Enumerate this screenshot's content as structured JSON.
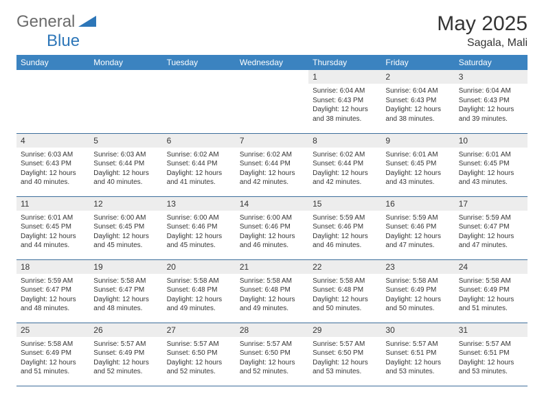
{
  "logo": {
    "general": "General",
    "blue": "Blue"
  },
  "title": "May 2025",
  "location": "Sagala, Mali",
  "colors": {
    "header_bg": "#3b83c0",
    "header_text": "#ffffff",
    "daynum_bg": "#ededed",
    "border": "#3b6c9a",
    "logo_gray": "#6b6b6b",
    "logo_blue": "#2d76b8",
    "text": "#343434"
  },
  "weekdays": [
    "Sunday",
    "Monday",
    "Tuesday",
    "Wednesday",
    "Thursday",
    "Friday",
    "Saturday"
  ],
  "weeks": [
    [
      null,
      null,
      null,
      null,
      {
        "d": "1",
        "sr": "6:04 AM",
        "ss": "6:43 PM",
        "dl": "12 hours and 38 minutes."
      },
      {
        "d": "2",
        "sr": "6:04 AM",
        "ss": "6:43 PM",
        "dl": "12 hours and 38 minutes."
      },
      {
        "d": "3",
        "sr": "6:04 AM",
        "ss": "6:43 PM",
        "dl": "12 hours and 39 minutes."
      }
    ],
    [
      {
        "d": "4",
        "sr": "6:03 AM",
        "ss": "6:43 PM",
        "dl": "12 hours and 40 minutes."
      },
      {
        "d": "5",
        "sr": "6:03 AM",
        "ss": "6:44 PM",
        "dl": "12 hours and 40 minutes."
      },
      {
        "d": "6",
        "sr": "6:02 AM",
        "ss": "6:44 PM",
        "dl": "12 hours and 41 minutes."
      },
      {
        "d": "7",
        "sr": "6:02 AM",
        "ss": "6:44 PM",
        "dl": "12 hours and 42 minutes."
      },
      {
        "d": "8",
        "sr": "6:02 AM",
        "ss": "6:44 PM",
        "dl": "12 hours and 42 minutes."
      },
      {
        "d": "9",
        "sr": "6:01 AM",
        "ss": "6:45 PM",
        "dl": "12 hours and 43 minutes."
      },
      {
        "d": "10",
        "sr": "6:01 AM",
        "ss": "6:45 PM",
        "dl": "12 hours and 43 minutes."
      }
    ],
    [
      {
        "d": "11",
        "sr": "6:01 AM",
        "ss": "6:45 PM",
        "dl": "12 hours and 44 minutes."
      },
      {
        "d": "12",
        "sr": "6:00 AM",
        "ss": "6:45 PM",
        "dl": "12 hours and 45 minutes."
      },
      {
        "d": "13",
        "sr": "6:00 AM",
        "ss": "6:46 PM",
        "dl": "12 hours and 45 minutes."
      },
      {
        "d": "14",
        "sr": "6:00 AM",
        "ss": "6:46 PM",
        "dl": "12 hours and 46 minutes."
      },
      {
        "d": "15",
        "sr": "5:59 AM",
        "ss": "6:46 PM",
        "dl": "12 hours and 46 minutes."
      },
      {
        "d": "16",
        "sr": "5:59 AM",
        "ss": "6:46 PM",
        "dl": "12 hours and 47 minutes."
      },
      {
        "d": "17",
        "sr": "5:59 AM",
        "ss": "6:47 PM",
        "dl": "12 hours and 47 minutes."
      }
    ],
    [
      {
        "d": "18",
        "sr": "5:59 AM",
        "ss": "6:47 PM",
        "dl": "12 hours and 48 minutes."
      },
      {
        "d": "19",
        "sr": "5:58 AM",
        "ss": "6:47 PM",
        "dl": "12 hours and 48 minutes."
      },
      {
        "d": "20",
        "sr": "5:58 AM",
        "ss": "6:48 PM",
        "dl": "12 hours and 49 minutes."
      },
      {
        "d": "21",
        "sr": "5:58 AM",
        "ss": "6:48 PM",
        "dl": "12 hours and 49 minutes."
      },
      {
        "d": "22",
        "sr": "5:58 AM",
        "ss": "6:48 PM",
        "dl": "12 hours and 50 minutes."
      },
      {
        "d": "23",
        "sr": "5:58 AM",
        "ss": "6:49 PM",
        "dl": "12 hours and 50 minutes."
      },
      {
        "d": "24",
        "sr": "5:58 AM",
        "ss": "6:49 PM",
        "dl": "12 hours and 51 minutes."
      }
    ],
    [
      {
        "d": "25",
        "sr": "5:58 AM",
        "ss": "6:49 PM",
        "dl": "12 hours and 51 minutes."
      },
      {
        "d": "26",
        "sr": "5:57 AM",
        "ss": "6:49 PM",
        "dl": "12 hours and 52 minutes."
      },
      {
        "d": "27",
        "sr": "5:57 AM",
        "ss": "6:50 PM",
        "dl": "12 hours and 52 minutes."
      },
      {
        "d": "28",
        "sr": "5:57 AM",
        "ss": "6:50 PM",
        "dl": "12 hours and 52 minutes."
      },
      {
        "d": "29",
        "sr": "5:57 AM",
        "ss": "6:50 PM",
        "dl": "12 hours and 53 minutes."
      },
      {
        "d": "30",
        "sr": "5:57 AM",
        "ss": "6:51 PM",
        "dl": "12 hours and 53 minutes."
      },
      {
        "d": "31",
        "sr": "5:57 AM",
        "ss": "6:51 PM",
        "dl": "12 hours and 53 minutes."
      }
    ]
  ],
  "labels": {
    "sunrise": "Sunrise: ",
    "sunset": "Sunset: ",
    "daylight": "Daylight: "
  }
}
